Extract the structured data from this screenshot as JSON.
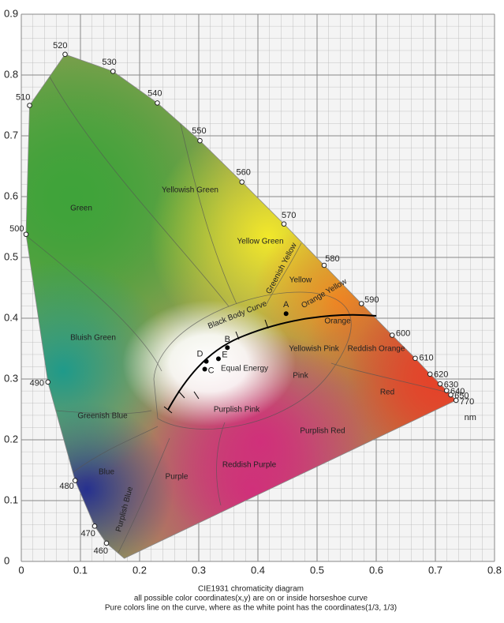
{
  "chart_data": {
    "type": "chromaticity",
    "xlim": [
      0,
      0.8
    ],
    "ylim": [
      0,
      0.9
    ],
    "xticks": [
      0,
      0.1,
      0.2,
      0.3,
      0.4,
      0.5,
      0.6,
      0.7,
      0.8
    ],
    "yticks": [
      0,
      0.1,
      0.2,
      0.3,
      0.4,
      0.5,
      0.6,
      0.7,
      0.8,
      0.9
    ],
    "grid": true,
    "locus": {
      "wavelengths": [
        460,
        470,
        480,
        490,
        500,
        510,
        520,
        530,
        540,
        550,
        560,
        570,
        580,
        590,
        600,
        610,
        620,
        630,
        640,
        650,
        770
      ],
      "x": [
        0.144,
        0.124,
        0.091,
        0.045,
        0.008,
        0.014,
        0.074,
        0.155,
        0.23,
        0.302,
        0.373,
        0.444,
        0.512,
        0.575,
        0.627,
        0.666,
        0.691,
        0.708,
        0.719,
        0.726,
        0.735
      ],
      "y": [
        0.03,
        0.058,
        0.133,
        0.295,
        0.538,
        0.75,
        0.834,
        0.806,
        0.754,
        0.692,
        0.624,
        0.555,
        0.487,
        0.424,
        0.372,
        0.334,
        0.308,
        0.292,
        0.281,
        0.274,
        0.265
      ],
      "unit": "nm"
    },
    "white_points": {
      "names": [
        "A",
        "B",
        "C",
        "D",
        "E"
      ],
      "x": [
        0.4476,
        0.3484,
        0.3101,
        0.3127,
        0.3333
      ],
      "y": [
        0.4074,
        0.3516,
        0.3162,
        0.329,
        0.3333
      ]
    },
    "regions": [
      "Green",
      "Yellowish Green",
      "Yellow Green",
      "Greenish Yellow",
      "Yellow",
      "Orange Yellow",
      "Orange",
      "Reddish Orange",
      "Red",
      "Bluish Green",
      "Greenish Blue",
      "Blue",
      "Purplish Blue",
      "Purple",
      "Reddish Purple",
      "Purplish Red",
      "Purplish Pink",
      "Pink",
      "Yellowish Pink",
      "Equal Energy",
      "Black Body Curve"
    ],
    "caption": [
      "CIE1931 chromaticity diagram",
      "all possible color coordinates(x,y) are on or inside horseshoe curve",
      "Pure colors line on the curve, where as the white point has the coordinates(1/3,   1/3)"
    ]
  }
}
